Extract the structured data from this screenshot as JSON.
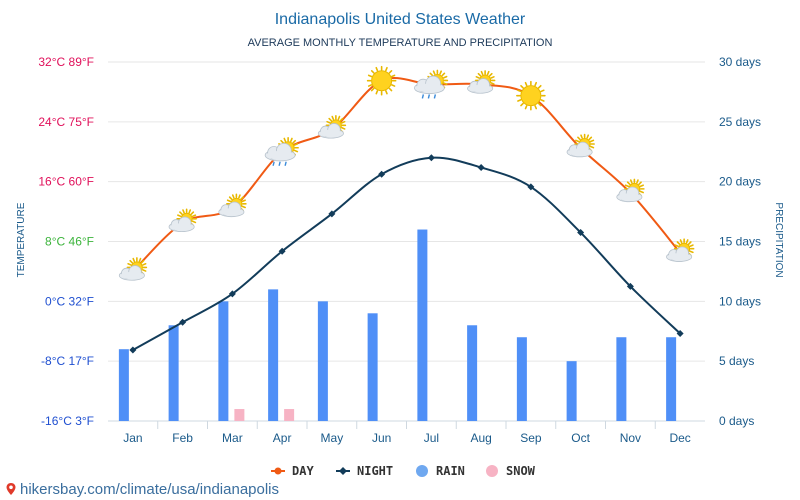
{
  "chart_data": {
    "type": "line+bar",
    "title": "Indianapolis United States Weather",
    "subtitle": "AVERAGE MONTHLY TEMPERATURE AND PRECIPITATION",
    "left_axis_label": "TEMPERATURE",
    "right_axis_label": "PRECIPITATION",
    "categories": [
      "Jan",
      "Feb",
      "Mar",
      "Apr",
      "May",
      "Jun",
      "Jul",
      "Aug",
      "Sep",
      "Oct",
      "Nov",
      "Dec"
    ],
    "temperature_ylim": [
      -16,
      32
    ],
    "temperature_ticks": [
      {
        "value": 32,
        "label": "32°C 89°F"
      },
      {
        "value": 24,
        "label": "24°C 75°F"
      },
      {
        "value": 16,
        "label": "16°C 60°F"
      },
      {
        "value": 8,
        "label": "8°C 46°F"
      },
      {
        "value": 0,
        "label": "0°C 32°F"
      },
      {
        "value": -8,
        "label": "-8°C 17°F"
      },
      {
        "value": -16,
        "label": "-16°C 3°F"
      }
    ],
    "precip_ylim": [
      0,
      30
    ],
    "precip_ticks": [
      {
        "value": 30,
        "label": "30 days"
      },
      {
        "value": 25,
        "label": "25 days"
      },
      {
        "value": 20,
        "label": "20 days"
      },
      {
        "value": 15,
        "label": "15 days"
      },
      {
        "value": 10,
        "label": "10 days"
      },
      {
        "value": 5,
        "label": "5 days"
      },
      {
        "value": 0,
        "label": "0 days"
      }
    ],
    "series": [
      {
        "name": "DAY",
        "kind": "line",
        "color": "#f05a14",
        "values": [
          4,
          10.5,
          12.5,
          20,
          23,
          29.5,
          29,
          29,
          27.5,
          20.5,
          14.5,
          6.5
        ]
      },
      {
        "name": "NIGHT",
        "kind": "line",
        "color": "#123c5a",
        "values": [
          -6.5,
          -2.8,
          1,
          6.7,
          11.7,
          17,
          19.2,
          17.9,
          15.3,
          9.2,
          2,
          -4.3
        ]
      },
      {
        "name": "RAIN",
        "kind": "bar",
        "color": "#4f8ff7",
        "values": [
          6,
          8,
          10,
          11,
          10,
          9,
          16,
          8,
          7,
          5,
          7,
          7
        ]
      },
      {
        "name": "SNOW",
        "kind": "bar",
        "color": "#f7b3c4",
        "values": [
          0,
          0,
          1,
          1,
          0,
          0,
          0,
          0,
          0,
          0,
          0,
          0
        ]
      }
    ],
    "weather_icons": [
      "partly-cloudy-icon",
      "partly-cloudy-icon",
      "partly-cloudy-icon",
      "rain-cloud-icon",
      "partly-cloudy-icon",
      "sun-icon",
      "rain-cloud-icon",
      "partly-cloudy-icon",
      "sun-icon",
      "partly-cloudy-icon",
      "partly-cloudy-icon",
      "partly-cloudy-icon"
    ],
    "legend": [
      {
        "name": "DAY",
        "marker": "line-dot",
        "color": "#f05a14"
      },
      {
        "name": "NIGHT",
        "marker": "line-diamond",
        "color": "#123c5a"
      },
      {
        "name": "RAIN",
        "marker": "circle",
        "color": "#6fa8f0"
      },
      {
        "name": "SNOW",
        "marker": "circle",
        "color": "#f7b3c4"
      }
    ],
    "tick_colors": {
      "32": "#e0105a",
      "24": "#e0105a",
      "16": "#e0105a",
      "8": "#3cb43c",
      "0": "#1f4fd0",
      "-8": "#1f4fd0",
      "-16": "#1f4fd0"
    }
  },
  "footer": {
    "text": "hikersbay.com/climate/usa/indianapolis"
  }
}
